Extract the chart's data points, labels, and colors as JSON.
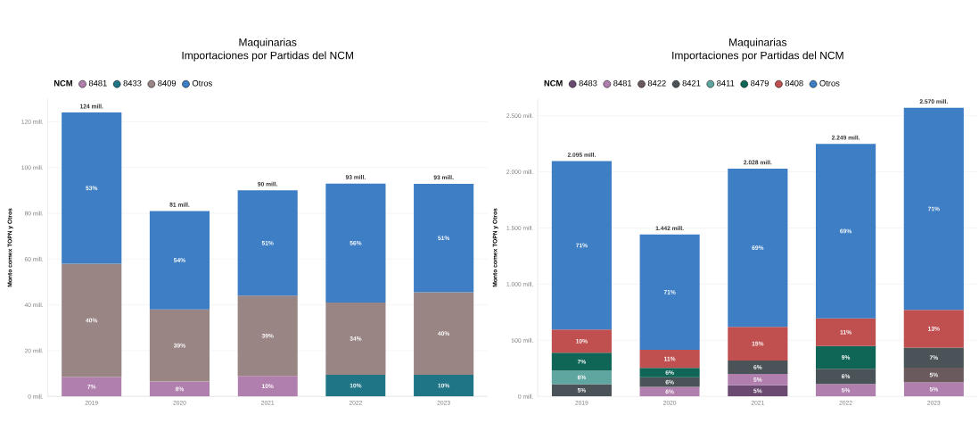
{
  "chart_data": [
    {
      "type": "bar",
      "title": "Maquinarias",
      "subtitle": "Importaciones por Partidas del NCM",
      "ylabel": "Monto comex TOPN y Otros",
      "legend_title": "NCM",
      "legend": "top left",
      "grid": "y",
      "stacked": true,
      "categories": [
        "2019",
        "2020",
        "2021",
        "2022",
        "2023"
      ],
      "ylim": [
        0,
        130
      ],
      "yticks": [
        {
          "value": 0,
          "label": "0 mill."
        },
        {
          "value": 20,
          "label": "20 mill."
        },
        {
          "value": 40,
          "label": "40 mill."
        },
        {
          "value": 60,
          "label": "60 mill."
        },
        {
          "value": 80,
          "label": "80 mill."
        },
        {
          "value": 100,
          "label": "100 mill."
        },
        {
          "value": 120,
          "label": "120 mill."
        }
      ],
      "series": [
        {
          "name": "8481",
          "color": "#b07fae",
          "values": [
            8.5,
            6.5,
            9,
            null,
            null
          ]
        },
        {
          "name": "8433",
          "color": "#1f7585",
          "values": [
            null,
            null,
            null,
            9.5,
            9.5
          ]
        },
        {
          "name": "8409",
          "color": "#9a8585",
          "values": [
            49.5,
            31.5,
            35,
            31.5,
            36
          ]
        },
        {
          "name": "Otros",
          "color": "#3d7ec4",
          "values": [
            66,
            43,
            46,
            52,
            47.4
          ]
        }
      ],
      "totals": [
        "124 mill.",
        "81 mill.",
        "90 mill.",
        "93 mill.",
        "93 mill."
      ],
      "annotations": [
        "7%",
        "8%",
        "10%",
        "10%",
        "10%",
        "40%",
        "39%",
        "39%",
        "34%",
        "40%",
        "53%",
        "54%",
        "51%",
        "56%",
        "51%"
      ]
    },
    {
      "type": "bar",
      "title": "Maquinarias",
      "subtitle": "Importaciones por Partidas del NCM",
      "ylabel": "Monto comex TOPN y Otros",
      "legend_title": "NCM",
      "legend": "top left",
      "grid": "y",
      "stacked": true,
      "categories": [
        "2019",
        "2020",
        "2021",
        "2022",
        "2023"
      ],
      "ylim": [
        0,
        2650
      ],
      "yticks": [
        {
          "value": 0,
          "label": "0 mill."
        },
        {
          "value": 500,
          "label": "500 mill."
        },
        {
          "value": 1000,
          "label": "1.000 mill."
        },
        {
          "value": 1500,
          "label": "1.500 mill."
        },
        {
          "value": 2000,
          "label": "2.000 mill."
        },
        {
          "value": 2500,
          "label": "2.500 mill."
        }
      ],
      "series": [
        {
          "name": "8483",
          "color": "#6b4a72",
          "values": [
            null,
            null,
            100,
            null,
            null
          ]
        },
        {
          "name": "8481",
          "color": "#b07fae",
          "values": [
            null,
            85,
            100,
            112,
            128
          ]
        },
        {
          "name": "8422",
          "color": "#6a5a5e",
          "values": [
            null,
            null,
            null,
            null,
            128
          ]
        },
        {
          "name": "8421",
          "color": "#4a5458",
          "values": [
            110,
            85,
            120,
            135,
            180
          ]
        },
        {
          "name": "8411",
          "color": "#5fa5a0",
          "values": [
            120,
            null,
            null,
            null,
            null
          ]
        },
        {
          "name": "8479",
          "color": "#0f6657",
          "values": [
            160,
            85,
            null,
            202,
            null
          ]
        },
        {
          "name": "8408",
          "color": "#c05050",
          "values": [
            205,
            160,
            300,
            247,
            334
          ]
        },
        {
          "name": "Otros",
          "color": "#3d7ec4",
          "values": [
            1500,
            1027,
            1408,
            1552,
            1800
          ]
        }
      ],
      "totals": [
        "2.095 mill.",
        "1.442 mill.",
        "2.028 mill.",
        "2.249 mill.",
        "2.570 mill."
      ],
      "annotations": [
        "5%",
        "6%",
        "5%",
        "5%",
        "5%",
        "5%",
        "5%",
        "6%",
        "6%",
        "6%",
        "7%",
        "6%",
        "7%",
        "6%",
        "9%",
        "10%",
        "11%",
        "15%",
        "11%",
        "13%",
        "71%",
        "71%",
        "69%",
        "69%",
        "71%"
      ]
    }
  ]
}
